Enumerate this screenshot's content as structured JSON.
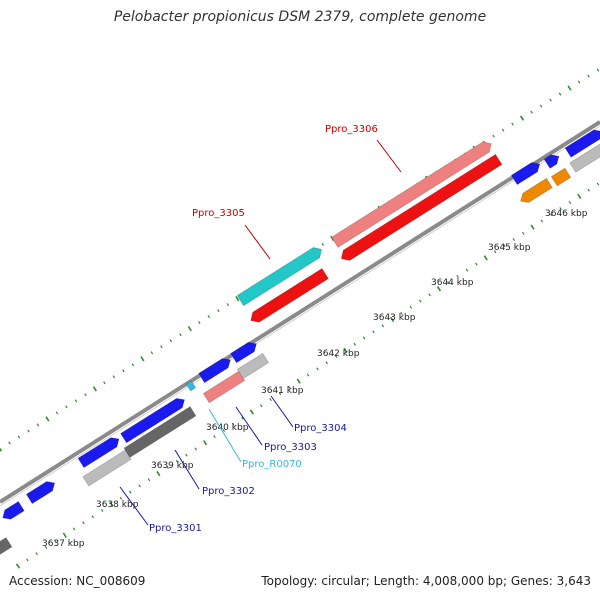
{
  "title": "Pelobacter propionicus DSM 2379, complete genome",
  "footer": {
    "accession": "Accession: NC_008609",
    "summary": "Topology: circular; Length: 4,008,000 bp; Genes: 3,643"
  },
  "colors": {
    "backbone": "#8a8a8a",
    "tick": "#2e8b2e",
    "cds_forward": "#1a1aee",
    "cds_reverse_gray": "#bbbbbb",
    "cds_dark_gray": "#666666",
    "cds_red": "#ee1111",
    "cds_pink": "#ee8080",
    "cds_cyan": "#22c8c8",
    "cds_orange": "#ee8800",
    "label_blue": "#1a1a99",
    "label_red": "#cc0000",
    "label_cyan": "#33bbdd"
  },
  "ruler": {
    "labels": [
      "3637 kbp",
      "3638 kbp",
      "3639 kbp",
      "3640 kbp",
      "3641 kbp",
      "3642 kbp",
      "3643 kbp",
      "3644 kbp",
      "3645 kbp",
      "3646 kbp"
    ]
  },
  "genes": [
    {
      "label": "Ppro_3301",
      "color": "label_blue"
    },
    {
      "label": "Ppro_3302",
      "color": "label_blue"
    },
    {
      "label": "Ppro_R0070",
      "color": "label_cyan"
    },
    {
      "label": "Ppro_3303",
      "color": "label_blue"
    },
    {
      "label": "Ppro_3304",
      "color": "label_blue"
    },
    {
      "label": "Ppro_3305",
      "color": "label_red"
    },
    {
      "label": "Ppro_3306",
      "color": "label_red"
    }
  ]
}
